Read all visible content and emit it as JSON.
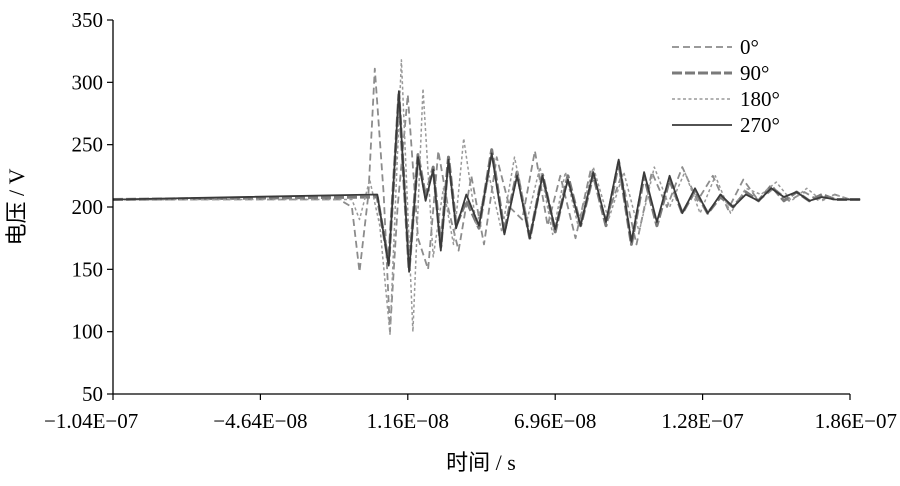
{
  "chart_data": {
    "type": "line",
    "xlabel": "时间 / s",
    "ylabel": "电压 / V",
    "xlim": [
      -1.04e-07,
      1.86e-07
    ],
    "ylim": [
      50,
      350
    ],
    "grid": false,
    "legend_position": "top-right",
    "x_tick_labels": [
      "−1.04E−07",
      "−4.64E−08",
      "1.16E−08",
      "6.96E−08",
      "1.28E−07",
      "1.86E−07"
    ],
    "y_tick_labels": [
      "50",
      "100",
      "150",
      "200",
      "250",
      "300",
      "350"
    ],
    "series": [
      {
        "name": "0°",
        "color": "#8c8c8c",
        "x": [
          -1.04e-07,
          -1.5e-08,
          -1e-08,
          -7e-09,
          -3.5e-09,
          -1e-09,
          2.5e-09,
          5e-09,
          8e-09,
          1.2e-08,
          1.6e-08,
          2e-08,
          2.4e-08,
          2.8e-08,
          3.2e-08,
          3.7e-08,
          4.2e-08,
          4.7e-08,
          5.2e-08,
          5.7e-08,
          6.2e-08,
          6.7e-08,
          7.2e-08,
          7.8e-08,
          8.4e-08,
          9e-08,
          9.6e-08,
          1.02e-07,
          1.08e-07,
          1.14e-07,
          1.2e-07,
          1.26e-07,
          1.32e-07,
          1.38e-07,
          1.44e-07,
          1.5e-07,
          1.56e-07,
          1.62e-07,
          1.68e-07,
          1.74e-07,
          1.8e-07,
          1.86e-07,
          1.9e-07
        ],
        "y": [
          206,
          206,
          200,
          148,
          210,
          311,
          210,
          100,
          200,
          290,
          175,
          150,
          245,
          198,
          165,
          225,
          170,
          240,
          200,
          190,
          245,
          185,
          225,
          175,
          230,
          190,
          225,
          170,
          228,
          200,
          232,
          205,
          225,
          198,
          222,
          205,
          215,
          205,
          212,
          205,
          210,
          206,
          206
        ]
      },
      {
        "name": "90°",
        "color": "#7a7a7a",
        "x": [
          -1.04e-07,
          0.0,
          4.5e-09,
          8.5e-09,
          1.25e-08,
          1.6e-08,
          1.9e-08,
          2.2e-08,
          2.5e-08,
          2.8e-08,
          3.1e-08,
          3.5e-08,
          4e-08,
          4.5e-08,
          5e-08,
          5.5e-08,
          6e-08,
          6.5e-08,
          7e-08,
          7.5e-08,
          8e-08,
          8.5e-08,
          9e-08,
          9.5e-08,
          1e-07,
          1.05e-07,
          1.1e-07,
          1.15e-07,
          1.2e-07,
          1.25e-07,
          1.3e-07,
          1.35e-07,
          1.4e-07,
          1.45e-07,
          1.5e-07,
          1.55e-07,
          1.6e-07,
          1.65e-07,
          1.7e-07,
          1.75e-07,
          1.8e-07,
          1.86e-07,
          1.9e-07
        ],
        "y": [
          206,
          208,
          155,
          290,
          150,
          242,
          208,
          232,
          168,
          240,
          185,
          205,
          183,
          246,
          180,
          228,
          175,
          226,
          180,
          225,
          185,
          226,
          185,
          236,
          170,
          225,
          185,
          222,
          195,
          213,
          195,
          208,
          200,
          212,
          205,
          217,
          205,
          212,
          205,
          210,
          206,
          206,
          206
        ]
      },
      {
        "name": "180°",
        "color": "#999999",
        "x": [
          -1.04e-07,
          -1e-08,
          -7e-09,
          -3e-09,
          1e-09,
          5e-09,
          9.5e-09,
          1.4e-08,
          1.8e-08,
          2.2e-08,
          2.6e-08,
          3e-08,
          3.4e-08,
          3.9e-08,
          4.4e-08,
          4.9e-08,
          5.4e-08,
          5.9e-08,
          6.4e-08,
          6.9e-08,
          7.4e-08,
          7.9e-08,
          8.5e-08,
          9.1e-08,
          9.7e-08,
          1.03e-07,
          1.09e-07,
          1.15e-07,
          1.21e-07,
          1.27e-07,
          1.33e-07,
          1.39e-07,
          1.45e-07,
          1.51e-07,
          1.57e-07,
          1.63e-07,
          1.69e-07,
          1.75e-07,
          1.8e-07,
          1.86e-07,
          1.9e-07
        ],
        "y": [
          206,
          206,
          190,
          222,
          185,
          98,
          318,
          100,
          295,
          160,
          215,
          170,
          255,
          185,
          225,
          180,
          240,
          190,
          232,
          178,
          228,
          185,
          232,
          190,
          228,
          180,
          232,
          200,
          228,
          195,
          225,
          195,
          215,
          210,
          220,
          205,
          215,
          205,
          210,
          206,
          206
        ]
      },
      {
        "name": "270°",
        "color": "#3a3a3a",
        "x": [
          -1.04e-07,
          0.0,
          4.5e-09,
          8.5e-09,
          1.25e-08,
          1.6e-08,
          1.9e-08,
          2.2e-08,
          2.5e-08,
          2.8e-08,
          3.1e-08,
          3.5e-08,
          4e-08,
          4.5e-08,
          5e-08,
          5.5e-08,
          6e-08,
          6.5e-08,
          7e-08,
          7.5e-08,
          8e-08,
          8.5e-08,
          9e-08,
          9.5e-08,
          1e-07,
          1.05e-07,
          1.1e-07,
          1.15e-07,
          1.2e-07,
          1.25e-07,
          1.3e-07,
          1.35e-07,
          1.4e-07,
          1.45e-07,
          1.5e-07,
          1.55e-07,
          1.6e-07,
          1.65e-07,
          1.7e-07,
          1.75e-07,
          1.8e-07,
          1.86e-07,
          1.9e-07
        ],
        "y": [
          206,
          210,
          153,
          293,
          148,
          240,
          205,
          230,
          165,
          238,
          183,
          210,
          185,
          243,
          178,
          225,
          175,
          225,
          182,
          222,
          185,
          228,
          188,
          238,
          172,
          228,
          188,
          225,
          195,
          215,
          195,
          210,
          200,
          210,
          205,
          215,
          208,
          212,
          205,
          208,
          206,
          206,
          206
        ]
      }
    ]
  }
}
